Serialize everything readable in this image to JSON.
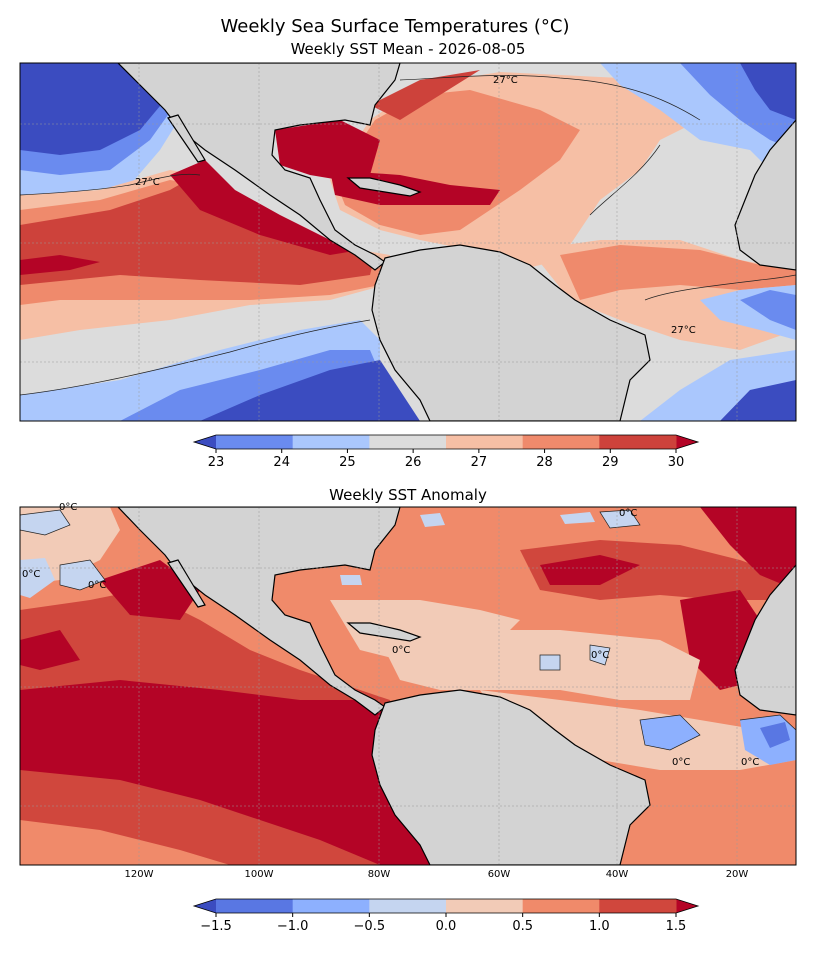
{
  "figure": {
    "suptitle": "Weekly Sea Surface Temperatures (°C)"
  },
  "panels": [
    {
      "title": "Weekly SST Mean - 2026-08-05",
      "colorbar": {
        "ticks": [
          "23",
          "24",
          "25",
          "26",
          "27",
          "28",
          "29",
          "30"
        ],
        "colors": [
          "#3b4cc0",
          "#6a8bef",
          "#aac7fd",
          "#dcdcdc",
          "#f6bfa5",
          "#ef8a6c",
          "#cd423b",
          "#b40426"
        ],
        "extend": "both"
      },
      "contour_labels": [
        "27°C",
        "27°C",
        "27°C"
      ]
    },
    {
      "title": "Weekly SST Anomaly",
      "colorbar": {
        "ticks": [
          "−1.5",
          "−1.0",
          "−0.5",
          "0.0",
          "0.5",
          "1.0",
          "1.5"
        ],
        "colors": [
          "#3b4cc0",
          "#5977e3",
          "#8db0fe",
          "#c5d5f0",
          "#f2cbb7",
          "#f08a6a",
          "#d0473d",
          "#b40426"
        ],
        "extend": "both"
      },
      "contour_labels": [
        "0°C",
        "0°C",
        "0°C",
        "0°C",
        "0°C",
        "0°C",
        "0°C",
        "0°C"
      ]
    }
  ],
  "longitude_labels": [
    "120W",
    "100W",
    "80W",
    "60W",
    "40W",
    "20W"
  ],
  "land_color": "#d3d3d3"
}
